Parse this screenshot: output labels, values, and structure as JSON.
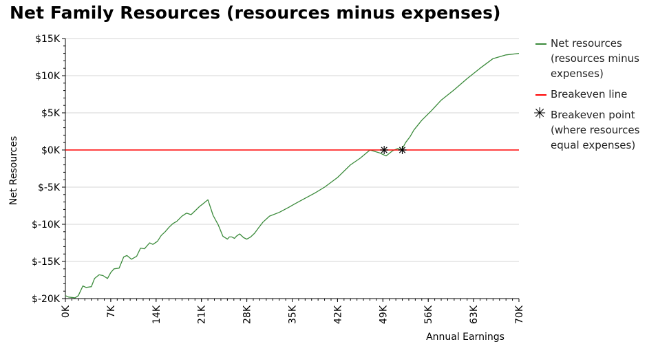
{
  "chart_data": {
    "type": "line",
    "title": "Net Family Resources (resources minus expenses)",
    "xlabel": "Annual Earnings",
    "ylabel": "Net Resources",
    "xlim": [
      0,
      70000
    ],
    "ylim": [
      -20000,
      15000
    ],
    "x_ticks": [
      0,
      7000,
      14000,
      21000,
      28000,
      35000,
      42000,
      49000,
      56000,
      63000,
      70000
    ],
    "x_tick_labels": [
      "0K",
      "7K",
      "14K",
      "21K",
      "28K",
      "35K",
      "42K",
      "49K",
      "56K",
      "63K",
      "70K"
    ],
    "y_ticks": [
      15000,
      10000,
      5000,
      0,
      -5000,
      -10000,
      -15000,
      -20000
    ],
    "y_tick_labels": [
      "$15K",
      "$10K",
      "$5K",
      "$0K",
      "$-5K",
      "$-10K",
      "$-15K",
      "$-20K"
    ],
    "grid": "horizontal",
    "legend_position": "right",
    "series": [
      {
        "name": "Net resources\n(resources minus\nexpenses)",
        "color": "#3a8a3a",
        "kind": "line",
        "x": [
          0,
          500,
          1500,
          2000,
          2700,
          3200,
          4000,
          4500,
          5200,
          5800,
          6500,
          7000,
          7500,
          8300,
          9000,
          9500,
          10200,
          11000,
          11600,
          12200,
          13000,
          13500,
          14200,
          14800,
          15400,
          16000,
          16600,
          17200,
          18000,
          18700,
          19400,
          20000,
          20700,
          21300,
          22000,
          22800,
          23600,
          24300,
          25000,
          25300,
          25700,
          26100,
          26400,
          26900,
          27500,
          28000,
          28600,
          29200,
          29800,
          30500,
          31500,
          33000,
          34500,
          35500,
          37000,
          38500,
          40000,
          42000,
          44000,
          45500,
          47000,
          48500,
          49500,
          50500,
          51300,
          51900,
          52500,
          53200,
          53800,
          55000,
          56500,
          58000,
          60000,
          62000,
          64000,
          66000,
          68000,
          70000
        ],
        "values": [
          -19600,
          -19800,
          -19900,
          -19600,
          -18300,
          -18500,
          -18400,
          -17300,
          -16800,
          -16900,
          -17300,
          -16500,
          -16000,
          -15900,
          -14400,
          -14200,
          -14700,
          -14300,
          -13200,
          -13300,
          -12500,
          -12700,
          -12300,
          -11500,
          -11000,
          -10400,
          -9900,
          -9600,
          -8900,
          -8500,
          -8700,
          -8200,
          -7600,
          -7200,
          -6700,
          -8800,
          -10100,
          -11600,
          -12000,
          -11700,
          -11700,
          -11900,
          -11600,
          -11300,
          -11800,
          -12000,
          -11700,
          -11200,
          -10500,
          -9700,
          -8900,
          -8400,
          -7700,
          -7200,
          -6500,
          -5800,
          -5000,
          -3700,
          -2000,
          -1100,
          0,
          -400,
          -800,
          -100,
          200,
          0,
          1000,
          1800,
          2700,
          4000,
          5300,
          6700,
          8100,
          9600,
          11000,
          12300,
          12800,
          13000
        ]
      },
      {
        "name": "Breakeven line",
        "color": "#ff0000",
        "kind": "hline",
        "value": 0
      },
      {
        "name": "Breakeven point\n(where resources\nequal expenses)",
        "color": "#000000",
        "kind": "marker",
        "marker": "asterisk",
        "x": [
          49200,
          52000
        ],
        "values": [
          0,
          0
        ]
      }
    ]
  }
}
